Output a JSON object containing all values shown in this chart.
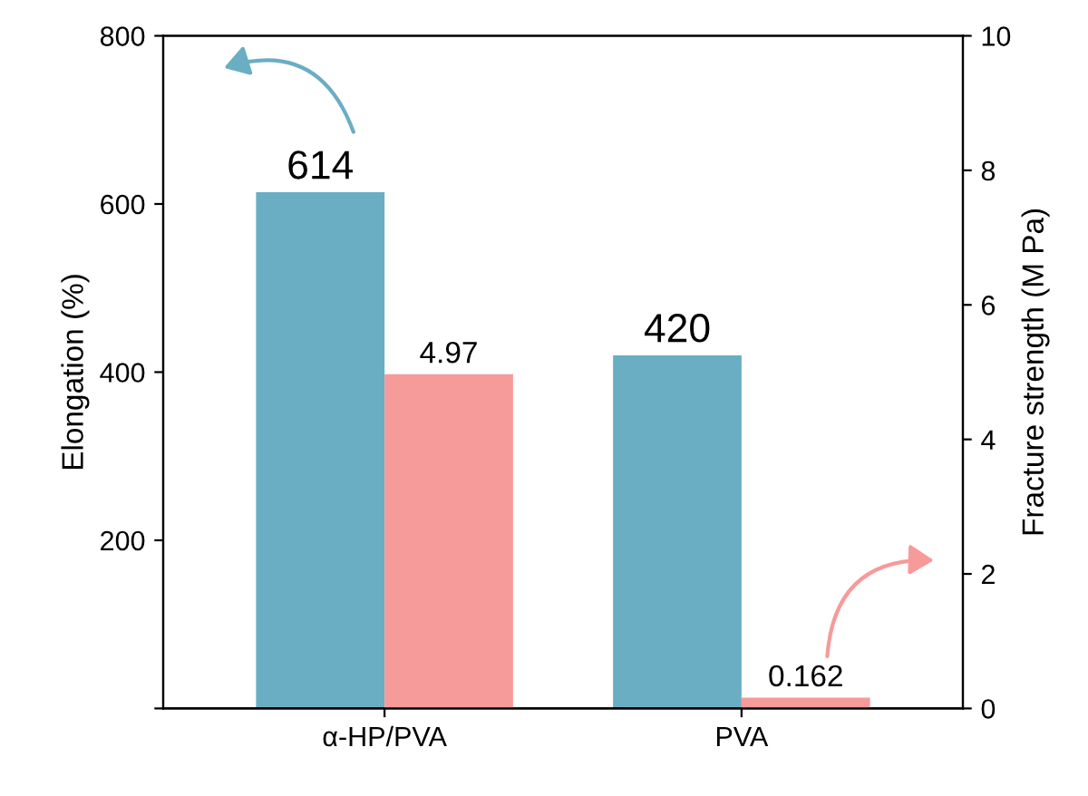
{
  "chart_data": {
    "type": "bar",
    "categories": [
      "α-HP/PVA",
      "PVA"
    ],
    "ylabel": "Elongation (%)",
    "y2label": "Fracture strength (M Pa)",
    "series": [
      {
        "color": "#6aaec4",
        "values": [
          614,
          420
        ]
      },
      {
        "color": "#f79a9a",
        "values": [
          4.97,
          0.162
        ],
        "axis": "y2"
      }
    ],
    "ylim": [
      0,
      800
    ],
    "yticks": [
      {
        "value": 0,
        "label": null
      },
      200,
      400,
      600,
      800
    ],
    "y2lim": [
      0,
      10
    ],
    "y2ticks": [
      0,
      2,
      4,
      6,
      8,
      10
    ],
    "data_labels": true,
    "grid": false,
    "legend": false
  }
}
